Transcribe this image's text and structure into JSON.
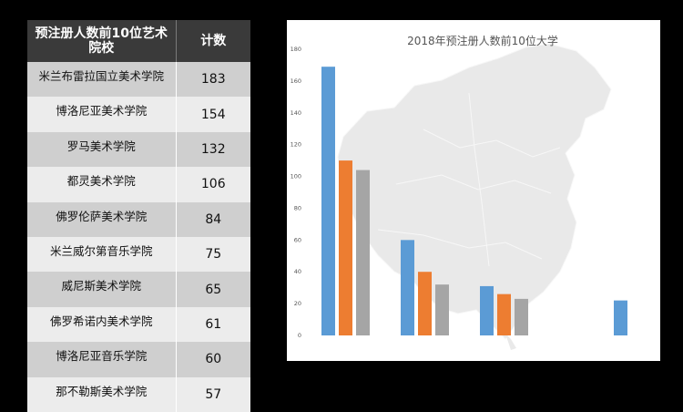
{
  "table": {
    "header": {
      "name": "预注册人数前10位艺术院校",
      "count": "计数"
    },
    "rows": [
      {
        "name": "米兰布雷拉国立美术学院",
        "count": "183"
      },
      {
        "name": "博洛尼亚美术学院",
        "count": "154"
      },
      {
        "name": "罗马美术学院",
        "count": "132"
      },
      {
        "name": "都灵美术学院",
        "count": "106"
      },
      {
        "name": "佛罗伦萨美术学院",
        "count": "84"
      },
      {
        "name": "米兰威尔第音乐学院",
        "count": "75"
      },
      {
        "name": "威尼斯美术学院",
        "count": "65"
      },
      {
        "name": "佛罗希诺内美术学院",
        "count": "61"
      },
      {
        "name": "博洛尼亚音乐学院",
        "count": "60"
      },
      {
        "name": "那不勒斯美术学院",
        "count": "57"
      }
    ]
  },
  "chart_data": {
    "type": "bar",
    "title": "2018年预注册人数前10位大学",
    "xlabel": "",
    "ylabel": "",
    "ylim": [
      0,
      180
    ],
    "yticks": [
      0,
      20,
      40,
      60,
      80,
      100,
      120,
      140,
      160,
      180
    ],
    "grid": false,
    "legend": "none",
    "background": "China map silhouette (light gray)",
    "colors": [
      "#5b9bd5",
      "#ed7d31",
      "#a5a5a5"
    ],
    "groups": [
      {
        "values": [
          169,
          110,
          104
        ]
      },
      {
        "values": [
          60,
          40,
          32
        ]
      },
      {
        "values": [
          31,
          26,
          23
        ]
      },
      {
        "values": [
          22
        ]
      }
    ]
  },
  "colors": {
    "page_bg": "#000000",
    "header_bg": "#3a3a3a",
    "row_odd": "#cfcfcf",
    "row_even": "#ececec"
  }
}
